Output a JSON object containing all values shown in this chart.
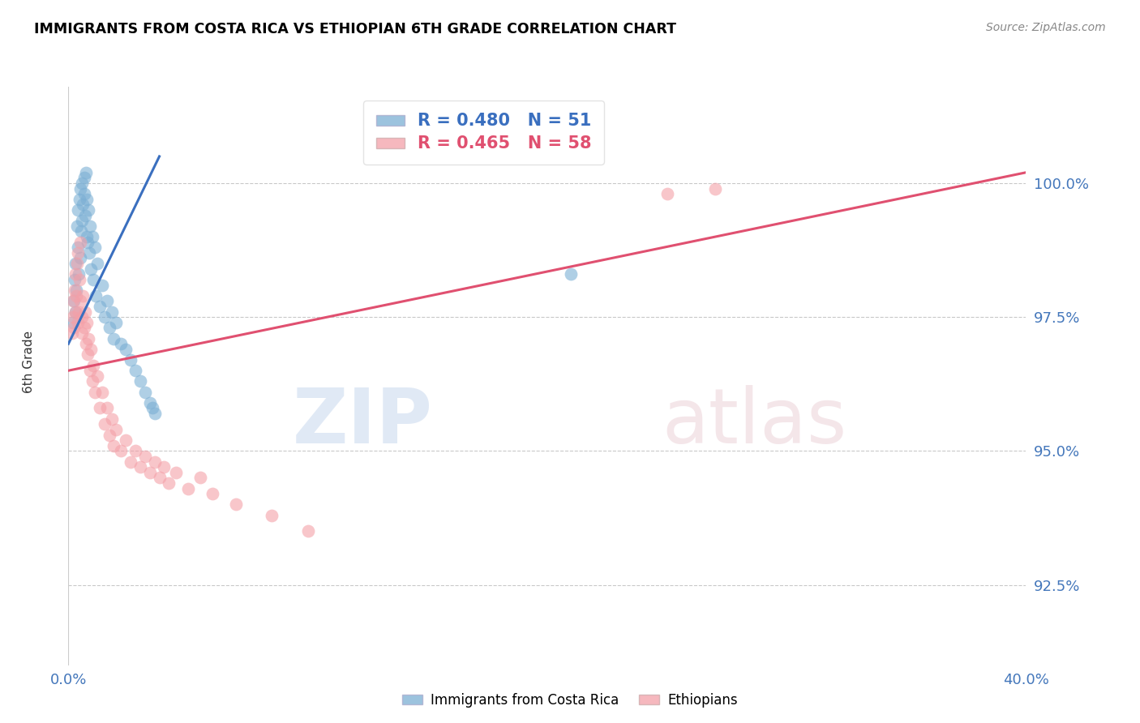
{
  "title": "IMMIGRANTS FROM COSTA RICA VS ETHIOPIAN 6TH GRADE CORRELATION CHART",
  "source": "Source: ZipAtlas.com",
  "ylabel": "6th Grade",
  "xmin": 0.0,
  "xmax": 40.0,
  "ymin": 91.0,
  "ymax": 101.8,
  "yticks": [
    92.5,
    95.0,
    97.5,
    100.0
  ],
  "ytick_labels": [
    "92.5%",
    "95.0%",
    "97.5%",
    "100.0%"
  ],
  "blue_R": 0.48,
  "blue_N": 51,
  "pink_R": 0.465,
  "pink_N": 58,
  "blue_color": "#7BAFD4",
  "pink_color": "#F4A0A8",
  "blue_line_color": "#3A6FBF",
  "pink_line_color": "#E05070",
  "axis_label_color": "#4477BB",
  "watermark_zip": "ZIP",
  "watermark_atlas": "atlas",
  "blue_label": "Immigrants from Costa Rica",
  "pink_label": "Ethiopians",
  "blue_scatter_x": [
    0.18,
    0.22,
    0.25,
    0.28,
    0.3,
    0.32,
    0.35,
    0.38,
    0.4,
    0.42,
    0.45,
    0.48,
    0.5,
    0.52,
    0.55,
    0.58,
    0.6,
    0.65,
    0.68,
    0.7,
    0.72,
    0.75,
    0.78,
    0.8,
    0.85,
    0.88,
    0.9,
    0.95,
    1.0,
    1.05,
    1.1,
    1.15,
    1.2,
    1.3,
    1.4,
    1.5,
    1.6,
    1.7,
    1.8,
    1.9,
    2.0,
    2.2,
    2.4,
    2.6,
    2.8,
    3.0,
    3.2,
    3.4,
    3.5,
    3.6,
    21.0
  ],
  "blue_scatter_y": [
    97.4,
    97.8,
    98.2,
    97.6,
    98.5,
    98.0,
    99.2,
    98.8,
    99.5,
    98.3,
    99.7,
    98.6,
    99.9,
    99.1,
    100.0,
    99.3,
    99.6,
    99.8,
    100.1,
    99.4,
    100.2,
    99.0,
    99.7,
    98.9,
    99.5,
    98.7,
    99.2,
    98.4,
    99.0,
    98.2,
    98.8,
    97.9,
    98.5,
    97.7,
    98.1,
    97.5,
    97.8,
    97.3,
    97.6,
    97.1,
    97.4,
    97.0,
    96.9,
    96.7,
    96.5,
    96.3,
    96.1,
    95.9,
    95.8,
    95.7,
    98.3
  ],
  "pink_scatter_x": [
    0.15,
    0.18,
    0.2,
    0.22,
    0.25,
    0.28,
    0.3,
    0.32,
    0.35,
    0.38,
    0.4,
    0.42,
    0.45,
    0.48,
    0.5,
    0.55,
    0.58,
    0.6,
    0.65,
    0.7,
    0.72,
    0.75,
    0.8,
    0.85,
    0.9,
    0.95,
    1.0,
    1.05,
    1.1,
    1.2,
    1.3,
    1.4,
    1.5,
    1.6,
    1.7,
    1.8,
    1.9,
    2.0,
    2.2,
    2.4,
    2.6,
    2.8,
    3.0,
    3.2,
    3.4,
    3.6,
    3.8,
    4.0,
    4.2,
    4.5,
    5.0,
    5.5,
    6.0,
    7.0,
    8.5,
    10.0,
    25.0,
    27.0
  ],
  "pink_scatter_y": [
    97.2,
    97.5,
    97.8,
    97.3,
    98.0,
    97.6,
    98.3,
    97.9,
    98.5,
    97.4,
    98.7,
    97.6,
    98.2,
    97.8,
    98.9,
    97.5,
    97.2,
    97.9,
    97.3,
    97.6,
    97.0,
    97.4,
    96.8,
    97.1,
    96.5,
    96.9,
    96.3,
    96.6,
    96.1,
    96.4,
    95.8,
    96.1,
    95.5,
    95.8,
    95.3,
    95.6,
    95.1,
    95.4,
    95.0,
    95.2,
    94.8,
    95.0,
    94.7,
    94.9,
    94.6,
    94.8,
    94.5,
    94.7,
    94.4,
    94.6,
    94.3,
    94.5,
    94.2,
    94.0,
    93.8,
    93.5,
    99.8,
    99.9
  ]
}
